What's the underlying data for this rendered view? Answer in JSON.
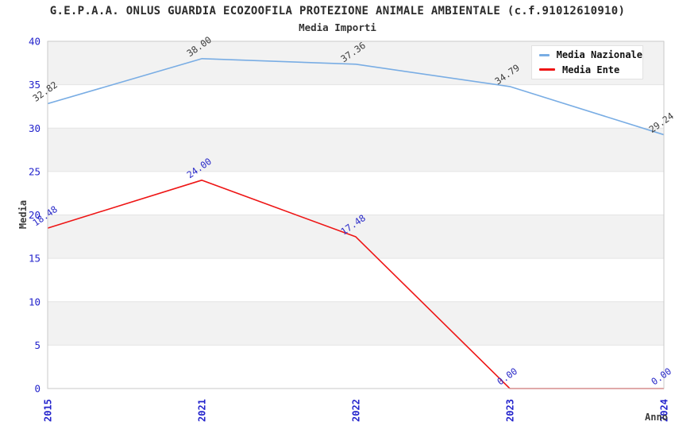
{
  "chart_data": {
    "type": "line",
    "title": "G.E.P.A.A. ONLUS GUARDIA ECOZOOFILA PROTEZIONE ANIMALE AMBIENTALE (c.f.91012610910)",
    "subtitle": "Media Importi",
    "xlabel": "Anno",
    "ylabel": "Media",
    "categories": [
      "2015",
      "2021",
      "2022",
      "2023",
      "2024"
    ],
    "series": [
      {
        "name": "Media Nazionale",
        "color": "#79ade4",
        "label_color": "#3c3c3c",
        "values": [
          32.82,
          38.0,
          37.36,
          34.79,
          29.24
        ]
      },
      {
        "name": "Media Ente",
        "color": "#ee1515",
        "label_color": "#2828c8",
        "values": [
          18.48,
          24.0,
          17.48,
          0.0,
          0.0
        ]
      }
    ],
    "ylim": [
      0,
      40
    ],
    "ytick_step": 5,
    "yticks": [
      0,
      5,
      10,
      15,
      20,
      25,
      30,
      35,
      40
    ],
    "legend_position": "top-right",
    "grid": "horizontal-bands",
    "value_label_decimals": 2,
    "colors": {
      "tick_label": "#2323cc",
      "axis_title": "#3c3c3c",
      "band": "#f2f2f2",
      "gridline": "#e4e4e4",
      "plot_border": "#c9c9c9"
    }
  }
}
